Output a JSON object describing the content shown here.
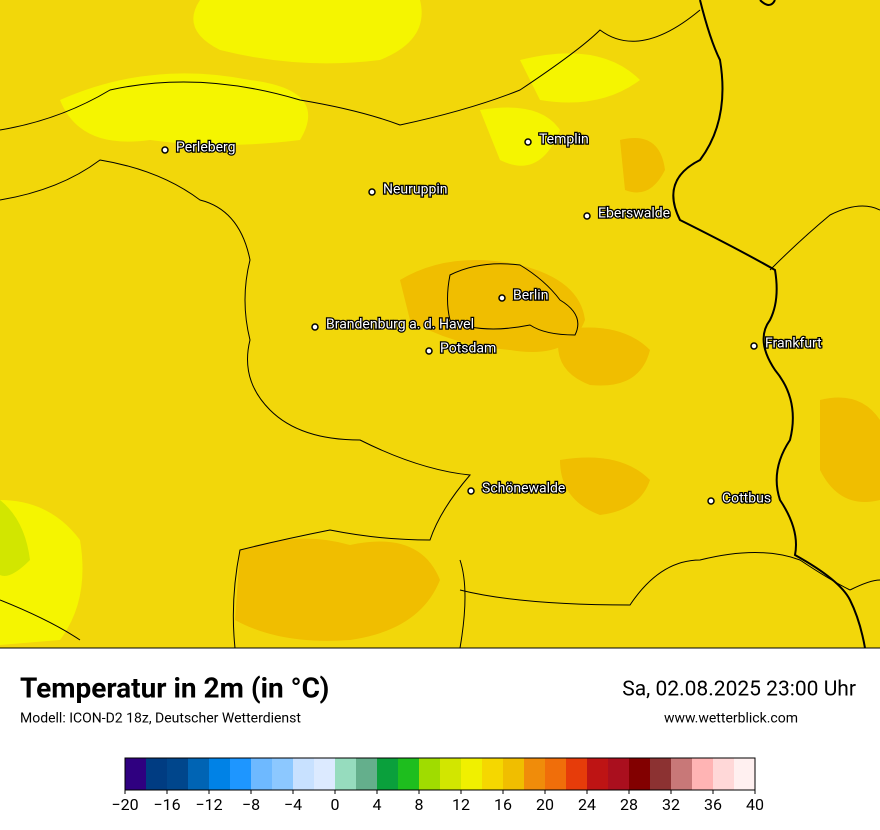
{
  "header": {
    "title": "Temperatur in 2m (in °C)",
    "model": "Modell: ICON-D2 18z, Deutscher Wetterdienst",
    "datetime": "Sa, 02.08.2025 23:00 Uhr",
    "website": "www.wetterblick.com"
  },
  "cities": [
    "Perleberg",
    "Templin",
    "Neuruppin",
    "Eberswalde",
    "Berlin",
    "Brandenburg a. d. Havel",
    "Potsdam",
    "Frankfurt",
    "Schönewalde",
    "Cottbus"
  ],
  "colorbar": {
    "clim": [
      -20,
      40
    ],
    "colors": [
      "#2f0080",
      "#003c82",
      "#00468c",
      "#0064b4",
      "#0082e6",
      "#1e96ff",
      "#6eb9ff",
      "#8cc8ff",
      "#c8e1ff",
      "#dceaff",
      "#96dcbe",
      "#64af8c",
      "#0aa03c",
      "#1ebe1e",
      "#a0dc00",
      "#d2e600",
      "#f0f000",
      "#f5d700",
      "#f0be00",
      "#f08c0a",
      "#f06e0a",
      "#e63c0a",
      "#be1414",
      "#aa0f1e",
      "#820000",
      "#8c3232",
      "#c87878",
      "#ffb4b4",
      "#ffd8d8",
      "#fff0f0"
    ],
    "ticks": [
      {
        "value": -20,
        "label": "−20"
      },
      {
        "value": -16,
        "label": "−16"
      },
      {
        "value": -12,
        "label": "−12"
      },
      {
        "value": -8,
        "label": "−8"
      },
      {
        "value": -4,
        "label": "−4"
      },
      0,
      4,
      8,
      12,
      16,
      20,
      24,
      28,
      32,
      36,
      40
    ]
  }
}
